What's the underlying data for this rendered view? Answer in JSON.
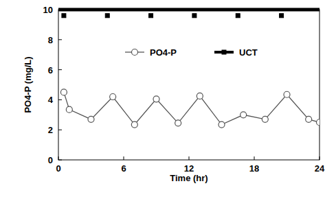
{
  "chart_data": {
    "type": "line",
    "x_label": "Time (hr)",
    "y_label": "PO4-P (mg/L)",
    "xlim": [
      0,
      24
    ],
    "xticks": [
      0,
      6,
      12,
      18,
      24
    ],
    "ylim": [
      0,
      10
    ],
    "yticks": [
      0,
      2,
      4,
      6,
      8,
      10
    ],
    "grid": false,
    "legend": "top",
    "series": [
      {
        "name": "PO4-P",
        "color": "#555555",
        "marker": "circle",
        "line_style": "solid",
        "x": [
          0.5,
          1,
          3,
          5,
          7,
          9,
          11,
          13,
          15,
          17,
          19,
          21,
          23,
          24
        ],
        "values": [
          4.5,
          3.35,
          2.7,
          4.2,
          2.35,
          4.05,
          2.45,
          4.25,
          2.35,
          3.0,
          2.7,
          4.35,
          2.7,
          2.5
        ]
      },
      {
        "name": "UCT",
        "color": "#000000",
        "marker": "square",
        "line_style": "none",
        "x": [
          0.5,
          4.5,
          8.5,
          12.5,
          16.5,
          20.5
        ],
        "values": [
          9.6,
          9.6,
          9.6,
          9.6,
          9.6,
          9.6
        ]
      }
    ]
  }
}
